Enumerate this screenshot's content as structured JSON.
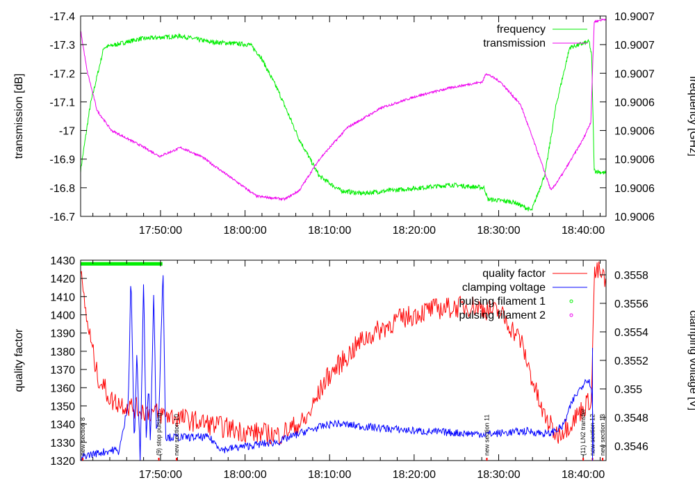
{
  "chart_data": [
    {
      "type": "line",
      "name": "top-panel",
      "ylabel": "transmission [dB]",
      "y2label": "frequency [GHz]",
      "xlim_minutes_after_1740": [
        0.55,
        62.7
      ],
      "xticks": [
        {
          "m": 10,
          "label": "17:50:00"
        },
        {
          "m": 20,
          "label": "18:00:00"
        },
        {
          "m": 30,
          "label": "18:10:00"
        },
        {
          "m": 40,
          "label": "18:20:00"
        },
        {
          "m": 50,
          "label": "18:30:00"
        },
        {
          "m": 60,
          "label": "18:40:00"
        }
      ],
      "ylim": [
        -17.4,
        -16.7
      ],
      "yticks": [
        "-16.7",
        "-16.8",
        "-16.9",
        "-17",
        "-17.1",
        "-17.2",
        "-17.3",
        "-17.4"
      ],
      "y2lim": [
        10.90058,
        10.90072
      ],
      "y2ticks": [
        "10.9007",
        "10.9007",
        "10.9007",
        "10.9006",
        "10.9006",
        "10.9006",
        "10.9006",
        "10.9006"
      ],
      "legend": "top-right",
      "series": [
        {
          "name": "frequency",
          "axis": "y2",
          "color": "#00ee00",
          "points": [
            [
              0.55,
              10.900612
            ],
            [
              1.7,
              10.900658
            ],
            [
              3.3,
              10.900698
            ],
            [
              7.5,
              10.900704
            ],
            [
              12.4,
              10.900706
            ],
            [
              15.7,
              10.900702
            ],
            [
              20.6,
              10.9007
            ],
            [
              21.8,
              10.900692
            ],
            [
              23.9,
              10.900668
            ],
            [
              26.4,
              10.900634
            ],
            [
              28.8,
              10.900608
            ],
            [
              31.3,
              10.900598
            ],
            [
              33.8,
              10.900596
            ],
            [
              37.1,
              10.900598
            ],
            [
              44.4,
              10.900602
            ],
            [
              48.3,
              10.9006
            ],
            [
              48.7,
              10.900592
            ],
            [
              51.8,
              10.90059
            ],
            [
              53.9,
              10.900584
            ],
            [
              55.5,
              10.90061
            ],
            [
              56.8,
              10.900658
            ],
            [
              58.4,
              10.900698
            ],
            [
              60.7,
              10.900702
            ],
            [
              61.0,
              10.900692
            ],
            [
              61.3,
              10.900612
            ],
            [
              62.7,
              10.90061
            ]
          ]
        },
        {
          "name": "transmission",
          "axis": "y",
          "color": "#ee00ee",
          "points": [
            [
              0.55,
              -16.75
            ],
            [
              1.3,
              -16.89
            ],
            [
              2.5,
              -17.03
            ],
            [
              4.2,
              -17.1
            ],
            [
              7.5,
              -17.15
            ],
            [
              9.9,
              -17.19
            ],
            [
              12.4,
              -17.16
            ],
            [
              14.8,
              -17.19
            ],
            [
              18.1,
              -17.26
            ],
            [
              21.4,
              -17.33
            ],
            [
              24.7,
              -17.34
            ],
            [
              26.4,
              -17.31
            ],
            [
              28.8,
              -17.2
            ],
            [
              32.1,
              -17.09
            ],
            [
              36.2,
              -17.02
            ],
            [
              40.3,
              -16.98
            ],
            [
              44.4,
              -16.95
            ],
            [
              48.1,
              -16.93
            ],
            [
              48.5,
              -16.9
            ],
            [
              50.2,
              -16.93
            ],
            [
              52.6,
              -17.01
            ],
            [
              54.3,
              -17.15
            ],
            [
              56.2,
              -17.31
            ],
            [
              57.6,
              -17.25
            ],
            [
              60.0,
              -17.13
            ],
            [
              60.9,
              -17.07
            ],
            [
              61.3,
              -16.72
            ],
            [
              62.7,
              -16.71
            ]
          ]
        }
      ]
    },
    {
      "type": "line",
      "name": "bottom-panel",
      "ylabel": "quality factor",
      "y2label": "clamping voltage [V]",
      "ylim": [
        1320,
        1430
      ],
      "yticks": [
        "1320",
        "1330",
        "1340",
        "1350",
        "1360",
        "1370",
        "1380",
        "1390",
        "1400",
        "1410",
        "1420",
        "1430"
      ],
      "y2lim": [
        0.35461,
        0.3559
      ],
      "y2ticks": [
        "0.3546",
        "0.3548",
        "0.355",
        "0.3552",
        "0.3554",
        "0.3556",
        "0.3558"
      ],
      "legend": "top-right",
      "series": [
        {
          "name": "quality factor",
          "axis": "y",
          "color": "#ff0000",
          "points": [
            [
              0.55,
              1422
            ],
            [
              1.3,
              1397
            ],
            [
              2.5,
              1367
            ],
            [
              4.2,
              1353
            ],
            [
              7.5,
              1348
            ],
            [
              11.6,
              1344
            ],
            [
              15.7,
              1340
            ],
            [
              19.8,
              1336
            ],
            [
              23.9,
              1334
            ],
            [
              27.2,
              1342
            ],
            [
              29.6,
              1365
            ],
            [
              33.8,
              1386
            ],
            [
              37.9,
              1397
            ],
            [
              42.0,
              1403
            ],
            [
              46.9,
              1405
            ],
            [
              50.2,
              1401
            ],
            [
              52.6,
              1386
            ],
            [
              55.1,
              1347
            ],
            [
              56.8,
              1334
            ],
            [
              58.4,
              1340
            ],
            [
              60.4,
              1351
            ],
            [
              61.0,
              1355
            ],
            [
              61.3,
              1422
            ],
            [
              61.8,
              1424
            ],
            [
              62.7,
              1418
            ]
          ]
        },
        {
          "name": "clamping voltage",
          "axis": "y2",
          "color": "#0000ff",
          "points": [
            [
              0.55,
              0.3546
            ],
            [
              0.9,
              0.35464
            ],
            [
              4.6,
              0.35468
            ],
            [
              5.0,
              0.35466
            ],
            [
              5.6,
              0.3548
            ],
            [
              6.2,
              0.355
            ],
            [
              6.5,
              0.35582
            ],
            [
              6.9,
              0.3547
            ],
            [
              7.2,
              0.3553
            ],
            [
              7.6,
              0.3546
            ],
            [
              8.0,
              0.35578
            ],
            [
              8.3,
              0.35475
            ],
            [
              8.6,
              0.3551
            ],
            [
              8.8,
              0.3547
            ],
            [
              9.2,
              0.35572
            ],
            [
              9.5,
              0.3548
            ],
            [
              9.8,
              0.3549
            ],
            [
              10.3,
              0.35585
            ],
            [
              10.6,
              0.35476
            ],
            [
              11.2,
              0.35476
            ],
            [
              15.7,
              0.35476
            ],
            [
              17.3,
              0.35468
            ],
            [
              19.8,
              0.3547
            ],
            [
              23.9,
              0.35473
            ],
            [
              27.2,
              0.3548
            ],
            [
              30.5,
              0.35485
            ],
            [
              33.8,
              0.35483
            ],
            [
              40.3,
              0.3548
            ],
            [
              48.5,
              0.35478
            ],
            [
              53.4,
              0.3548
            ],
            [
              55.9,
              0.35478
            ],
            [
              57.6,
              0.35483
            ],
            [
              58.8,
              0.355
            ],
            [
              60.4,
              0.35514
            ],
            [
              61.0,
              0.35509
            ],
            [
              61.3,
              0.3546
            ]
          ]
        },
        {
          "name": "pulsing filament 1",
          "axis": "y",
          "color": "#00ee00",
          "points": [
            [
              0.7,
              1428
            ],
            [
              10.1,
              1428
            ]
          ]
        },
        {
          "name": "pulsing filament 2",
          "axis": "y",
          "color": "#ee00ee",
          "points": []
        }
      ],
      "events": [
        {
          "m": 0.8,
          "label": "new section 8"
        },
        {
          "m": 9.8,
          "label": "(9) stop pulsing"
        },
        {
          "m": 11.9,
          "label": "new section 10"
        },
        {
          "m": 48.6,
          "label": "new section 11"
        },
        {
          "m": 60.0,
          "label": "(11) LN2 transfer"
        },
        {
          "m": 61.1,
          "label": "new section 12"
        },
        {
          "m": 62.3,
          "label": "new section 13"
        }
      ]
    }
  ]
}
